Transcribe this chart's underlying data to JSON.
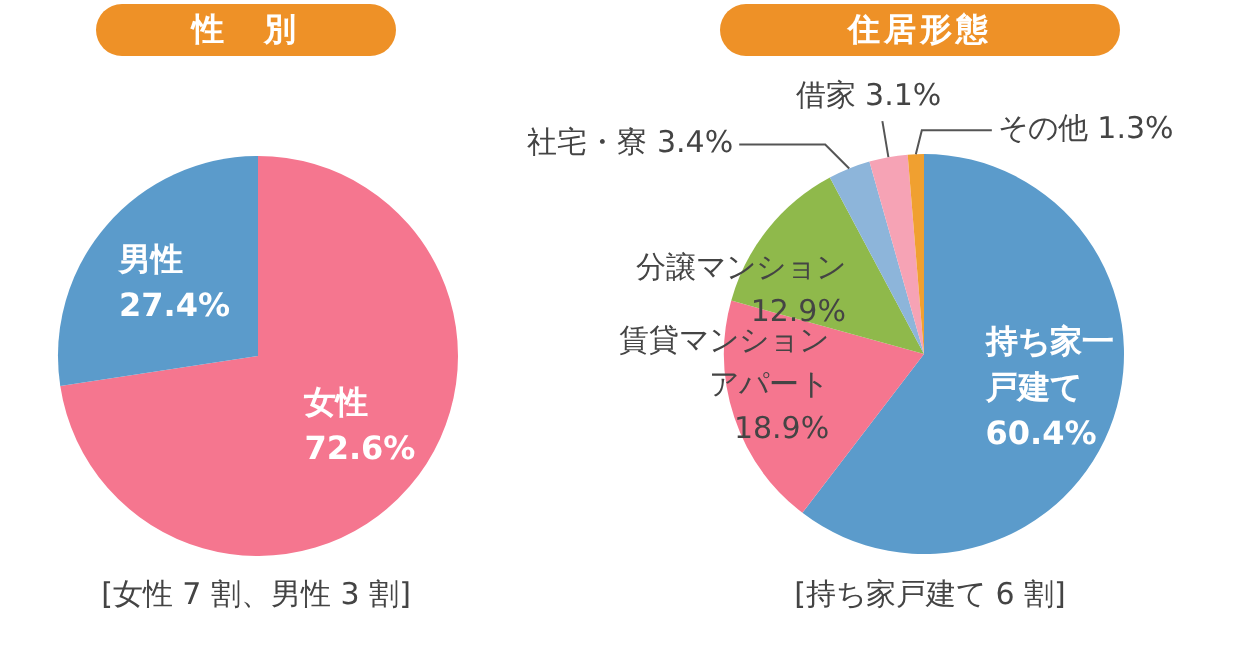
{
  "chart_data": [
    {
      "type": "pie",
      "title": "性　別",
      "categories": [
        "女性",
        "男性"
      ],
      "values": [
        72.6,
        27.4
      ],
      "colors": [
        "#f5768f",
        "#5b9bcb"
      ],
      "value_labels": [
        "72.6%",
        "27.4%"
      ],
      "annotations": [
        "[女性 7 割、男性 3 割]"
      ],
      "legend": false
    },
    {
      "type": "pie",
      "title": "住居形態",
      "categories": [
        "持ち家一戸建て",
        "賃貸マンションアパート",
        "分譲マンション",
        "社宅・寮",
        "借家",
        "その他"
      ],
      "values": [
        60.4,
        18.9,
        12.9,
        3.4,
        3.1,
        1.3
      ],
      "colors": [
        "#5b9bcb",
        "#f5768f",
        "#8fb94b",
        "#8db5da",
        "#f6a3b5",
        "#f0a030"
      ],
      "value_labels": [
        "60.4%",
        "18.9%",
        "12.9%",
        "3.4%",
        "3.1%",
        "1.3%"
      ],
      "annotations": [
        "[持ち家戸建て 6 割]"
      ],
      "legend": false
    }
  ]
}
